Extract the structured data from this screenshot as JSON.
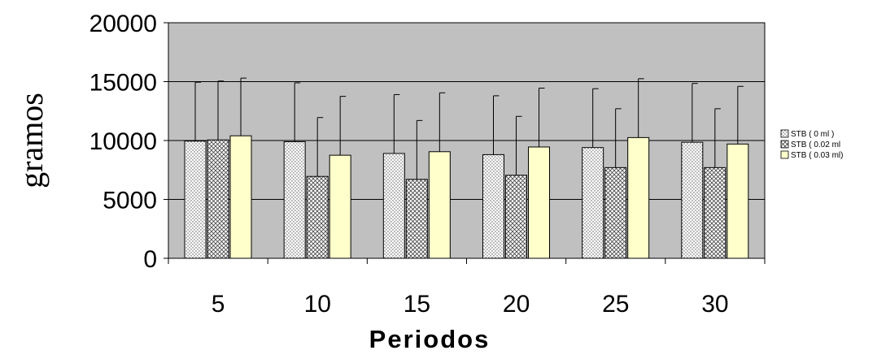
{
  "chart_data": {
    "type": "bar",
    "title": "",
    "xlabel": "Periodos",
    "ylabel": "gramos",
    "ylim": [
      0,
      20000
    ],
    "yticks": [
      "0",
      "5000",
      "10000",
      "15000",
      "20000"
    ],
    "categories": [
      "5",
      "10",
      "15",
      "20",
      "25",
      "30"
    ],
    "series": [
      {
        "name": "STB ( 0 ml )",
        "color": "#ffffff",
        "pattern": "dots",
        "values": [
          9950,
          9900,
          8900,
          8800,
          9400,
          9850
        ],
        "error": [
          5000,
          5000,
          5000,
          5000,
          5000,
          5000
        ]
      },
      {
        "name": "STB ( 0.02 ml",
        "color": "#ffffff",
        "pattern": "cross",
        "values": [
          10050,
          6950,
          6700,
          7050,
          7700,
          7700
        ],
        "error": [
          5000,
          5000,
          5000,
          5000,
          5000,
          5000
        ]
      },
      {
        "name": "STB ( 0.03 ml)",
        "color": "#ffffcc",
        "pattern": "solid",
        "values": [
          10400,
          8750,
          9050,
          9450,
          10250,
          9700
        ],
        "error": [
          4900,
          5000,
          5000,
          5000,
          5000,
          4900
        ]
      }
    ],
    "plot_background": "#c0c0c0",
    "grid": true,
    "legend_position": "right"
  }
}
